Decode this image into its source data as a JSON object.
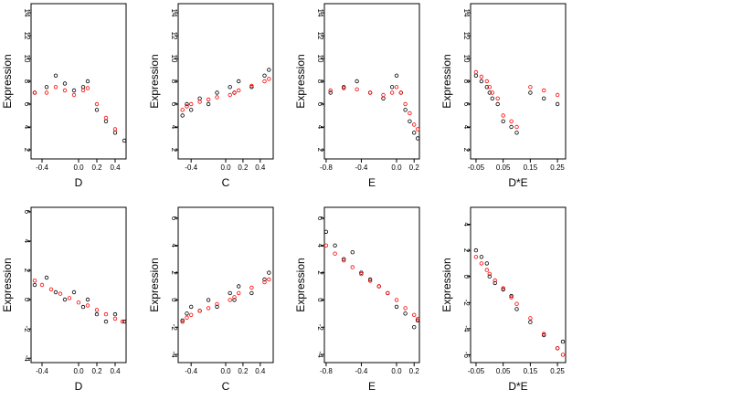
{
  "colors": {
    "observed": "#000000",
    "fitted": "#ff0000",
    "background": "#ffffff"
  },
  "chart_data": [
    {
      "type": "scatter",
      "ylabel": "Expression",
      "xlabel": "D",
      "xlim": [
        -0.52,
        0.52
      ],
      "ylim": [
        1.2,
        14.8
      ],
      "xticks": [
        "-0.4",
        "0.0",
        "0.2",
        "0.4"
      ],
      "xtick_values": [
        -0.4,
        0.0,
        0.2,
        0.4
      ],
      "yticks": [
        "2",
        "4",
        "6",
        "8",
        "10",
        "12",
        "14"
      ],
      "ytick_values": [
        2,
        4,
        6,
        8,
        10,
        12,
        14
      ],
      "series": [
        {
          "x": [
            -0.48,
            -0.35,
            -0.25,
            -0.15,
            -0.05,
            0.05,
            0.1,
            0.2,
            0.3,
            0.4,
            0.5
          ],
          "y": [
            7.0,
            7.5,
            8.5,
            7.8,
            7.2,
            7.5,
            8.0,
            5.5,
            4.5,
            3.5,
            2.8
          ]
        },
        {
          "x": [
            -0.48,
            -0.35,
            -0.25,
            -0.15,
            -0.05,
            0.05,
            0.1,
            0.2,
            0.3,
            0.4
          ],
          "y": [
            7.0,
            7.0,
            7.5,
            7.2,
            6.8,
            7.2,
            7.4,
            6.0,
            4.8,
            3.8
          ]
        }
      ]
    },
    {
      "type": "scatter",
      "ylabel": "Expression",
      "xlabel": "C",
      "xlim": [
        -0.55,
        0.55
      ],
      "ylim": [
        1.2,
        14.8
      ],
      "xticks": [
        "-0.4",
        "0.0",
        "0.2",
        "0.4"
      ],
      "xtick_values": [
        -0.4,
        0.0,
        0.2,
        0.4
      ],
      "yticks": [
        "2",
        "4",
        "6",
        "8",
        "10",
        "12",
        "14"
      ],
      "ytick_values": [
        2,
        4,
        6,
        8,
        10,
        12,
        14
      ],
      "series": [
        {
          "x": [
            -0.5,
            -0.45,
            -0.4,
            -0.3,
            -0.2,
            -0.1,
            0.05,
            0.1,
            0.15,
            0.3,
            0.45,
            0.5
          ],
          "y": [
            5.0,
            6.0,
            5.5,
            6.5,
            6.0,
            7.0,
            7.5,
            7.0,
            8.0,
            7.5,
            8.5,
            9.0
          ]
        },
        {
          "x": [
            -0.5,
            -0.45,
            -0.4,
            -0.3,
            -0.2,
            -0.1,
            0.05,
            0.1,
            0.15,
            0.3,
            0.45,
            0.5
          ],
          "y": [
            5.5,
            5.8,
            6.0,
            6.2,
            6.4,
            6.6,
            6.8,
            7.0,
            7.2,
            7.6,
            8.0,
            8.2
          ]
        }
      ]
    },
    {
      "type": "scatter",
      "ylabel": "Expression",
      "xlabel": "E",
      "xlim": [
        -0.82,
        0.26
      ],
      "ylim": [
        1.2,
        14.8
      ],
      "xticks": [
        "-0.8",
        "-0.4",
        "0.0",
        "0.2"
      ],
      "xtick_values": [
        -0.8,
        -0.4,
        0.0,
        0.2
      ],
      "yticks": [
        "2",
        "4",
        "6",
        "8",
        "10",
        "12",
        "14"
      ],
      "ytick_values": [
        2,
        4,
        6,
        8,
        10,
        12,
        14
      ],
      "series": [
        {
          "x": [
            -0.75,
            -0.6,
            -0.45,
            -0.3,
            -0.15,
            -0.05,
            0.0,
            0.05,
            0.1,
            0.15,
            0.2,
            0.24
          ],
          "y": [
            7.0,
            7.5,
            8.0,
            7.0,
            6.5,
            7.5,
            8.5,
            7.0,
            5.5,
            4.5,
            3.5,
            3.0
          ]
        },
        {
          "x": [
            -0.75,
            -0.6,
            -0.45,
            -0.3,
            -0.15,
            -0.05,
            0.0,
            0.05,
            0.1,
            0.15,
            0.2,
            0.24
          ],
          "y": [
            7.2,
            7.4,
            7.3,
            7.0,
            6.8,
            7.0,
            7.5,
            7.0,
            6.0,
            5.2,
            4.2,
            3.8
          ]
        }
      ]
    },
    {
      "type": "scatter",
      "ylabel": "Expression",
      "xlabel": "D*E",
      "xlim": [
        -0.07,
        0.28
      ],
      "ylim": [
        1.2,
        14.8
      ],
      "xticks": [
        "-0.05",
        "0.05",
        "0.15",
        "0.25"
      ],
      "xtick_values": [
        -0.05,
        0.05,
        0.15,
        0.25
      ],
      "yticks": [
        "2",
        "4",
        "6",
        "8",
        "10",
        "12",
        "14"
      ],
      "ytick_values": [
        2,
        4,
        6,
        8,
        10,
        12,
        14
      ],
      "series": [
        {
          "x": [
            -0.05,
            -0.03,
            -0.01,
            0.0,
            0.01,
            0.03,
            0.05,
            0.08,
            0.1,
            0.15,
            0.2,
            0.25
          ],
          "y": [
            8.5,
            8.0,
            7.5,
            7.0,
            6.5,
            6.0,
            4.5,
            4.0,
            3.5,
            7.0,
            6.5,
            6.0
          ]
        },
        {
          "x": [
            -0.05,
            -0.03,
            -0.01,
            0.0,
            0.01,
            0.03,
            0.05,
            0.08,
            0.1,
            0.15,
            0.2,
            0.25
          ],
          "y": [
            8.8,
            8.4,
            8.0,
            7.5,
            7.0,
            6.5,
            5.0,
            4.5,
            4.0,
            7.5,
            7.2,
            6.8
          ]
        }
      ]
    },
    {
      "type": "scatter",
      "ylabel": "Expression",
      "xlabel": "D",
      "xlim": [
        -0.52,
        0.52
      ],
      "ylim": [
        -4.3,
        6.3
      ],
      "xticks": [
        "-0.4",
        "0.0",
        "0.2",
        "0.4"
      ],
      "xtick_values": [
        -0.4,
        0.0,
        0.2,
        0.4
      ],
      "yticks": [
        "-4",
        "-2",
        "0",
        "2",
        "4",
        "6"
      ],
      "ytick_values": [
        -4,
        -2,
        0,
        2,
        4,
        6
      ],
      "series": [
        {
          "x": [
            -0.48,
            -0.35,
            -0.25,
            -0.15,
            -0.05,
            0.05,
            0.1,
            0.2,
            0.3,
            0.4,
            0.5
          ],
          "y": [
            1.0,
            1.5,
            0.5,
            0.0,
            0.5,
            -0.5,
            0.0,
            -1.0,
            -1.5,
            -1.0,
            -1.5
          ]
        },
        {
          "x": [
            -0.48,
            -0.4,
            -0.3,
            -0.2,
            -0.1,
            0.0,
            0.1,
            0.2,
            0.3,
            0.4,
            0.48
          ],
          "y": [
            1.3,
            1.0,
            0.7,
            0.4,
            0.1,
            -0.2,
            -0.4,
            -0.7,
            -1.0,
            -1.3,
            -1.5
          ]
        }
      ]
    },
    {
      "type": "scatter",
      "ylabel": "Expression",
      "xlabel": "C",
      "xlim": [
        -0.55,
        0.55
      ],
      "ylim": [
        -4.6,
        6.8
      ],
      "xticks": [
        "-0.4",
        "0.0",
        "0.2",
        "0.4"
      ],
      "xtick_values": [
        -0.4,
        0.0,
        0.2,
        0.4
      ],
      "yticks": [
        "-4",
        "-2",
        "0",
        "2",
        "4",
        "6"
      ],
      "ytick_values": [
        -4,
        -2,
        0,
        2,
        4,
        6
      ],
      "series": [
        {
          "x": [
            -0.5,
            -0.45,
            -0.4,
            -0.3,
            -0.2,
            -0.1,
            0.05,
            0.1,
            0.15,
            0.3,
            0.45,
            0.5
          ],
          "y": [
            -1.5,
            -1.0,
            -0.5,
            -0.8,
            0.0,
            -0.5,
            0.5,
            0.0,
            1.0,
            0.5,
            1.5,
            2.0
          ]
        },
        {
          "x": [
            -0.5,
            -0.45,
            -0.4,
            -0.3,
            -0.2,
            -0.1,
            0.05,
            0.1,
            0.15,
            0.3,
            0.45,
            0.5
          ],
          "y": [
            -1.6,
            -1.3,
            -1.1,
            -0.8,
            -0.6,
            -0.3,
            0.0,
            0.2,
            0.5,
            0.9,
            1.3,
            1.5
          ]
        }
      ]
    },
    {
      "type": "scatter",
      "ylabel": "Expression",
      "xlabel": "E",
      "xlim": [
        -0.82,
        0.26
      ],
      "ylim": [
        -4.6,
        6.8
      ],
      "xticks": [
        "-0.8",
        "-0.4",
        "0.0",
        "0.2"
      ],
      "xtick_values": [
        -0.8,
        -0.4,
        0.0,
        0.2
      ],
      "yticks": [
        "-4",
        "-2",
        "0",
        "2",
        "4",
        "6"
      ],
      "ytick_values": [
        -4,
        -2,
        0,
        2,
        4,
        6
      ],
      "series": [
        {
          "x": [
            -0.8,
            -0.7,
            -0.6,
            -0.5,
            -0.4,
            -0.3,
            -0.2,
            -0.1,
            0.0,
            0.1,
            0.2,
            0.24
          ],
          "y": [
            5.0,
            4.0,
            3.0,
            3.5,
            2.0,
            1.5,
            1.0,
            0.5,
            -0.5,
            -1.0,
            -2.0,
            -1.5
          ]
        },
        {
          "x": [
            -0.8,
            -0.7,
            -0.6,
            -0.5,
            -0.4,
            -0.3,
            -0.2,
            -0.1,
            0.0,
            0.1,
            0.2,
            0.24
          ],
          "y": [
            4.0,
            3.4,
            2.9,
            2.4,
            1.9,
            1.4,
            1.0,
            0.5,
            0.0,
            -0.6,
            -1.1,
            -1.4
          ]
        }
      ]
    },
    {
      "type": "scatter",
      "ylabel": "Expression",
      "xlabel": "D*E",
      "xlim": [
        -0.07,
        0.28
      ],
      "ylim": [
        -6.6,
        5.3
      ],
      "xticks": [
        "-0.05",
        "0.05",
        "0.15",
        "0.25"
      ],
      "xtick_values": [
        -0.05,
        0.05,
        0.15,
        0.25
      ],
      "yticks": [
        "-6",
        "-4",
        "-2",
        "0",
        "2",
        "4"
      ],
      "ytick_values": [
        -6,
        -4,
        -2,
        0,
        2,
        4
      ],
      "series": [
        {
          "x": [
            -0.05,
            -0.03,
            -0.01,
            0.0,
            0.02,
            0.05,
            0.08,
            0.1,
            0.15,
            0.2,
            0.25,
            0.27
          ],
          "y": [
            2.0,
            1.5,
            1.0,
            0.0,
            -0.5,
            -1.0,
            -1.5,
            -2.5,
            -3.5,
            -4.5,
            -5.5,
            -5.0
          ]
        },
        {
          "x": [
            -0.05,
            -0.03,
            -0.01,
            0.0,
            0.02,
            0.05,
            0.08,
            0.1,
            0.15,
            0.2,
            0.25,
            0.27
          ],
          "y": [
            1.5,
            1.0,
            0.5,
            0.2,
            -0.3,
            -0.9,
            -1.6,
            -2.1,
            -3.2,
            -4.4,
            -5.5,
            -6.0
          ]
        }
      ]
    }
  ]
}
